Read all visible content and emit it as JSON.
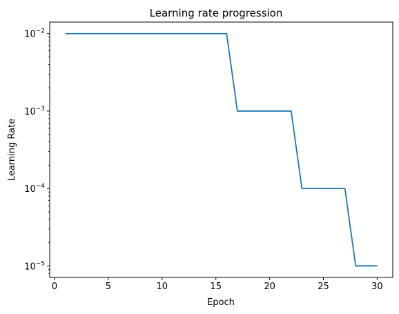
{
  "chart_data": {
    "type": "line",
    "title": "Learning rate progression",
    "xlabel": "Epoch",
    "ylabel": "Learning Rate",
    "xlim": [
      -0.45,
      31.45
    ],
    "ylim": [
      7.1e-06,
      0.0141
    ],
    "yscale": "log",
    "xticks": [
      0,
      5,
      10,
      15,
      20,
      25,
      30
    ],
    "yticks": [
      {
        "value": 0.01,
        "base": "10",
        "exp": "−2"
      },
      {
        "value": 0.001,
        "base": "10",
        "exp": "−3"
      },
      {
        "value": 0.0001,
        "base": "10",
        "exp": "−4"
      },
      {
        "value": 1e-05,
        "base": "10",
        "exp": "−5"
      }
    ],
    "grid": false,
    "legend": "none",
    "color": "#1f77b4",
    "series": [
      {
        "x": [
          1,
          2,
          3,
          4,
          5,
          6,
          7,
          8,
          9,
          10,
          11,
          12,
          13,
          14,
          15,
          16,
          17,
          18,
          19,
          20,
          21,
          22,
          23,
          24,
          25,
          26,
          27,
          28,
          29,
          30
        ],
        "values": [
          0.01,
          0.01,
          0.01,
          0.01,
          0.01,
          0.01,
          0.01,
          0.01,
          0.01,
          0.01,
          0.01,
          0.01,
          0.01,
          0.01,
          0.01,
          0.01,
          0.001,
          0.001,
          0.001,
          0.001,
          0.001,
          0.001,
          0.0001,
          0.0001,
          0.0001,
          0.0001,
          0.0001,
          1e-05,
          1e-05,
          1e-05
        ]
      }
    ]
  }
}
